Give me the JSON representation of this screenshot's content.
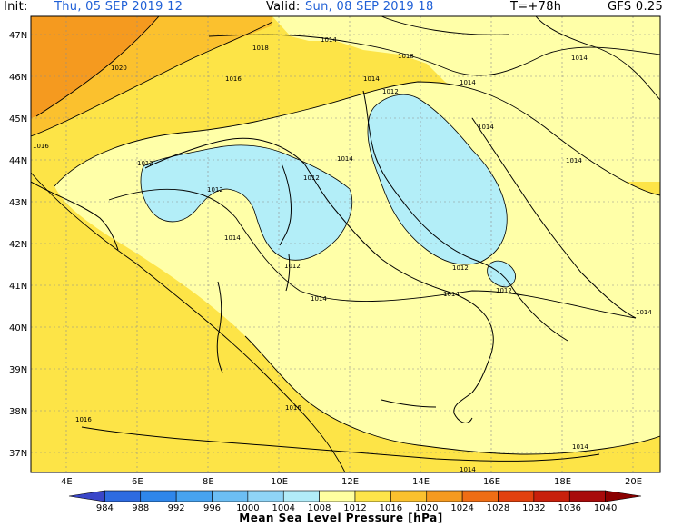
{
  "header": {
    "init_label": "Init:",
    "init_value": "Thu, 05 SEP 2019   12",
    "valid_label": "Valid:",
    "valid_value": "Sun, 08 SEP 2019   18",
    "lead": "T=+78h",
    "model": "GFS 0.25"
  },
  "axes": {
    "lat_labels": [
      "47N",
      "46N",
      "45N",
      "44N",
      "43N",
      "42N",
      "41N",
      "40N",
      "39N",
      "38N",
      "37N"
    ],
    "lon_labels": [
      "4E",
      "6E",
      "8E",
      "10E",
      "12E",
      "14E",
      "16E",
      "18E",
      "20E"
    ]
  },
  "isobar_labels": [
    {
      "text": "1014"
    },
    {
      "text": "1018"
    },
    {
      "text": "1018"
    },
    {
      "text": "1020"
    },
    {
      "text": "1016"
    },
    {
      "text": "1016"
    },
    {
      "text": "1014"
    },
    {
      "text": "1014"
    },
    {
      "text": "1012"
    },
    {
      "text": "1014"
    },
    {
      "text": "1014"
    },
    {
      "text": "1012"
    },
    {
      "text": "1012"
    },
    {
      "text": "1014"
    },
    {
      "text": "1012"
    },
    {
      "text": "1014"
    },
    {
      "text": "1012"
    },
    {
      "text": "1014"
    },
    {
      "text": "1012"
    },
    {
      "text": "1014"
    },
    {
      "text": "1012"
    },
    {
      "text": "1014"
    },
    {
      "text": "1016"
    },
    {
      "text": "1016"
    },
    {
      "text": "1014"
    },
    {
      "text": "1014"
    },
    {
      "text": "1014"
    }
  ],
  "colorbar": {
    "levels": [
      "984",
      "988",
      "992",
      "996",
      "1000",
      "1004",
      "1008",
      "1012",
      "1016",
      "1020",
      "1024",
      "1028",
      "1032",
      "1036",
      "1040"
    ],
    "colors": [
      "#3a46c8",
      "#2e6be0",
      "#2f86ea",
      "#47a3f0",
      "#6cbef4",
      "#8fd4f6",
      "#b2ecf8",
      "#ffffa0",
      "#fde44a",
      "#fbc12e",
      "#f59a1f",
      "#ef6d14",
      "#e2410e",
      "#c8200c",
      "#a80b0b",
      "#8a0000"
    ],
    "title": "Mean Sea Level Pressure [hPa]"
  },
  "colors": {
    "band_1016": "#fde447",
    "band_1012": "#ffffa8",
    "band_1008": "#b3eef8",
    "band_1020": "#fbc12e",
    "band_1024": "#f59a1f"
  }
}
